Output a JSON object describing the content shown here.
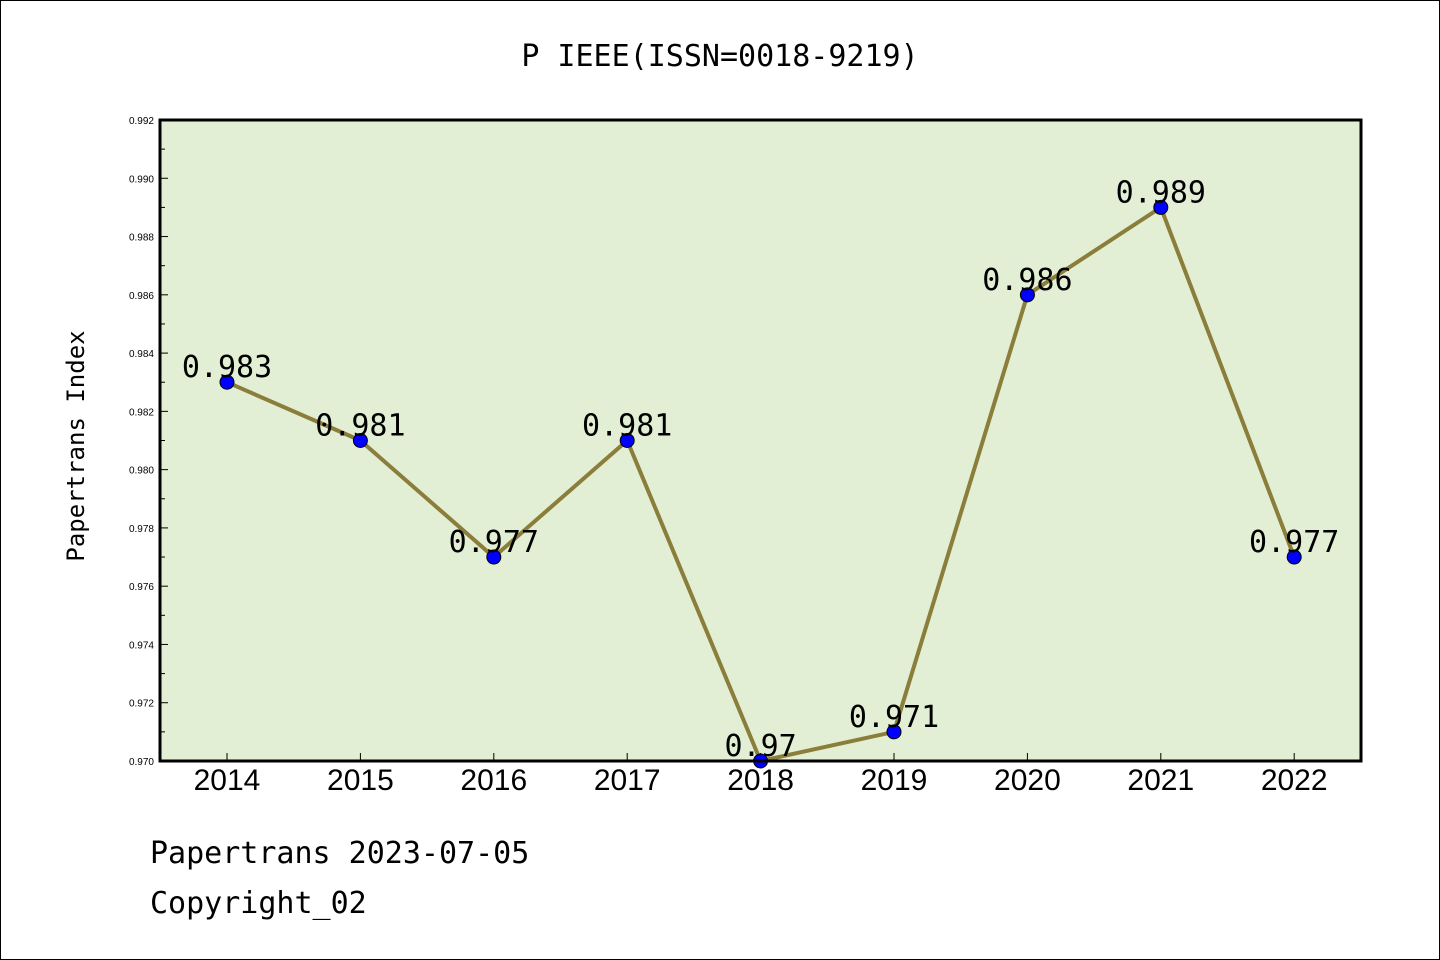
{
  "chart_data": {
    "type": "line",
    "title": "P IEEE(ISSN=0018-9219)",
    "xlabel": "",
    "ylabel": "Papertrans Index",
    "categories": [
      "2014",
      "2015",
      "2016",
      "2017",
      "2018",
      "2019",
      "2020",
      "2021",
      "2022"
    ],
    "series": [
      {
        "values": [
          0.983,
          0.981,
          0.977,
          0.981,
          0.97,
          0.971,
          0.986,
          0.989,
          0.977
        ],
        "labels": [
          "0.983",
          "0.981",
          "0.977",
          "0.981",
          "0.97",
          "0.971",
          "0.986",
          "0.989",
          "0.977"
        ],
        "line_color": "#8b7d3a",
        "marker_color": "#0000ff"
      }
    ],
    "ylim": [
      0.97,
      0.992
    ],
    "yticks": [
      "0.970",
      "0.972",
      "0.974",
      "0.976",
      "0.978",
      "0.980",
      "0.982",
      "0.984",
      "0.986",
      "0.988",
      "0.990",
      "0.992"
    ],
    "plot_background": "#e2efd5",
    "grid": false,
    "legend": "none"
  },
  "footer": {
    "line1": "Papertrans 2023-07-05",
    "line2": "Copyright_02"
  }
}
